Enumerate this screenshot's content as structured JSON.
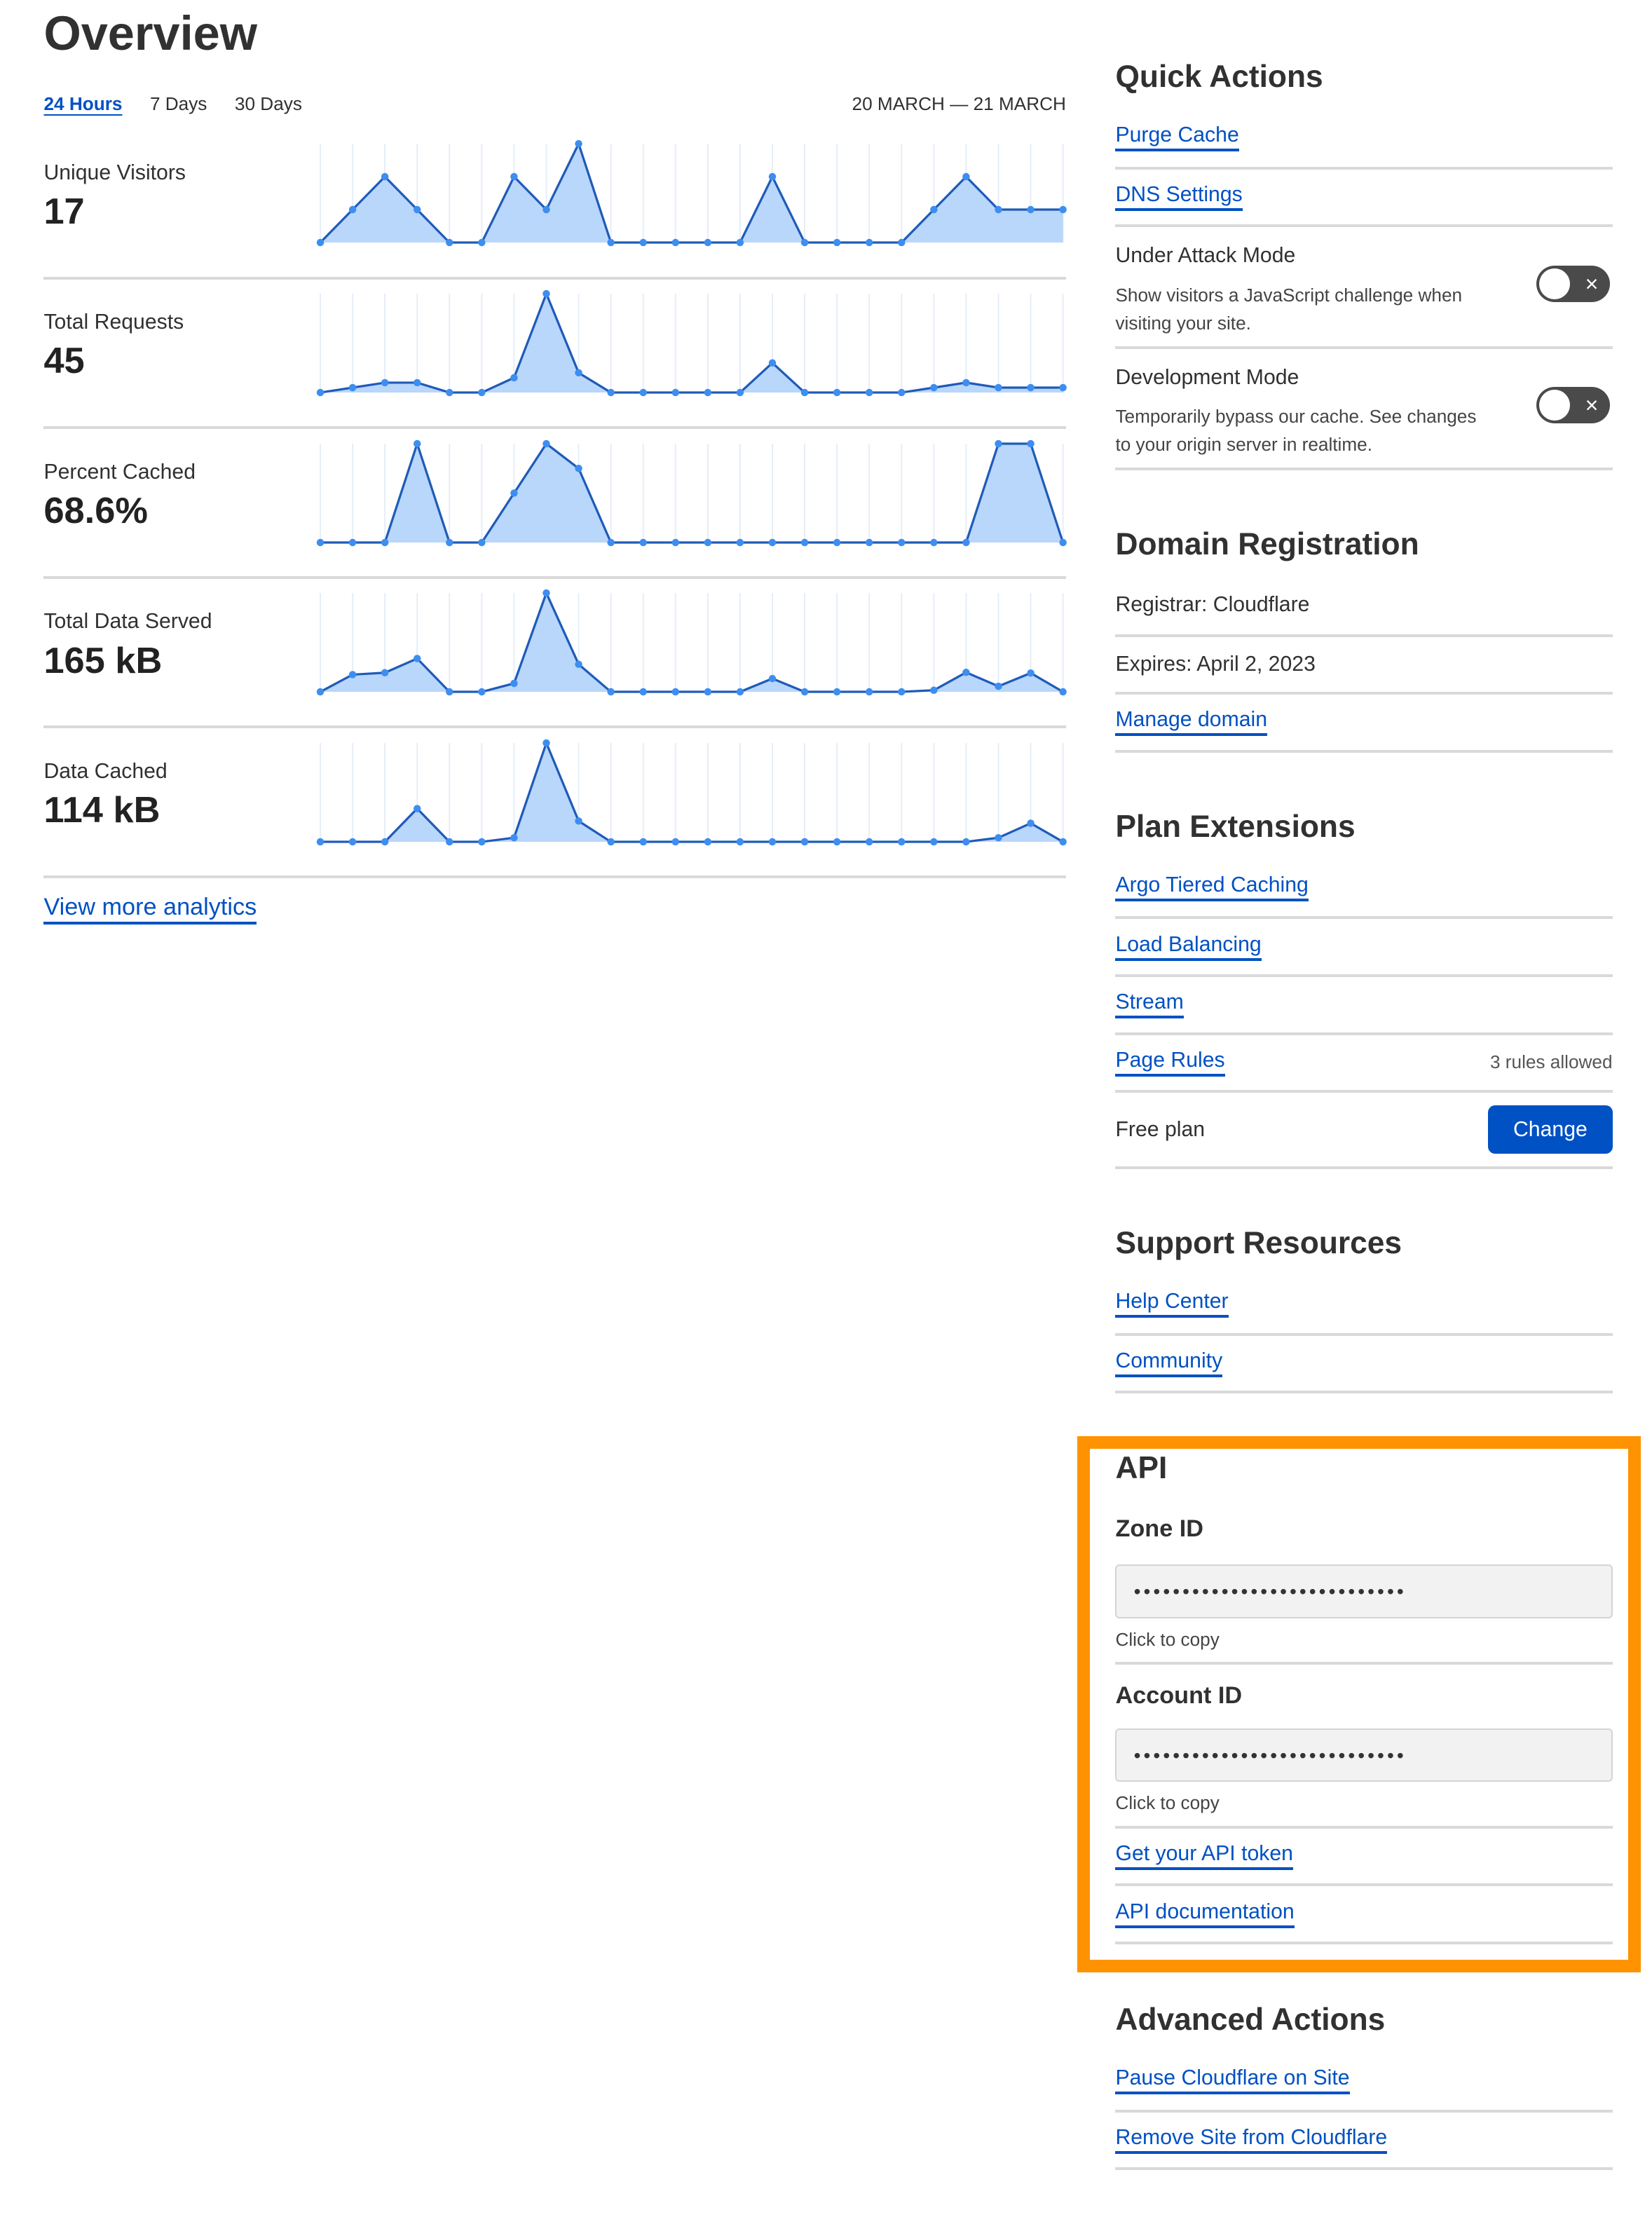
{
  "header": {
    "title": "Overview",
    "tabs": [
      "24 Hours",
      "7 Days",
      "30 Days"
    ],
    "active_tab": "24 Hours",
    "date_range": "20 MARCH — 21 MARCH"
  },
  "chart_data": [
    {
      "type": "area",
      "label": "Unique Visitors",
      "value": "17",
      "values": [
        0,
        1,
        2,
        1,
        0,
        0,
        2,
        1,
        3,
        0,
        0,
        0,
        0,
        0,
        2,
        0,
        0,
        0,
        0,
        1,
        2,
        1,
        1,
        1
      ]
    },
    {
      "type": "area",
      "label": "Total Requests",
      "value": "45",
      "values": [
        0,
        1,
        2,
        2,
        0,
        0,
        3,
        20,
        4,
        0,
        0,
        0,
        0,
        0,
        6,
        0,
        0,
        0,
        0,
        1,
        2,
        1,
        1,
        1
      ]
    },
    {
      "type": "area",
      "label": "Percent Cached",
      "value": "68.6%",
      "values": [
        0,
        0,
        0,
        100,
        0,
        0,
        50,
        100,
        75,
        0,
        0,
        0,
        0,
        0,
        0,
        0,
        0,
        0,
        0,
        0,
        0,
        100,
        100,
        0
      ]
    },
    {
      "type": "area",
      "label": "Total Data Served",
      "value": "165 kB",
      "values": [
        0,
        10.8,
        12,
        20.9,
        0,
        0,
        5.3,
        62,
        17.3,
        0,
        0,
        0,
        0,
        0,
        8.3,
        0,
        0,
        0,
        0,
        1,
        12.2,
        3.5,
        11.8,
        0
      ]
    },
    {
      "type": "area",
      "label": "Data Cached",
      "value": "114 kB",
      "values": [
        0,
        0,
        0,
        21.1,
        0,
        0,
        2.6,
        62.7,
        13.2,
        0,
        0,
        0,
        0,
        0,
        0,
        0,
        0,
        0,
        0,
        0,
        0,
        2.6,
        11.8,
        0
      ]
    }
  ],
  "view_more": "View more analytics",
  "colors": {
    "accent": "#0051c3",
    "line": "#1e5bb8",
    "point": "#3d8ef0",
    "fill": "#b9d6fb",
    "highlight": "#ff9200"
  },
  "quick_actions": {
    "title": "Quick Actions",
    "links": [
      "Purge Cache",
      "DNS Settings"
    ],
    "toggles": [
      {
        "title": "Under Attack Mode",
        "desc": "Show visitors a JavaScript challenge when visiting your site.",
        "on": false,
        "icon": "×"
      },
      {
        "title": "Development Mode",
        "desc": "Temporarily bypass our cache. See changes to your origin server in realtime.",
        "on": false,
        "icon": "×"
      }
    ]
  },
  "domain": {
    "title": "Domain Registration",
    "registrar": "Registrar: Cloudflare",
    "expires": "Expires: April 2, 2023",
    "manage": "Manage domain"
  },
  "plan": {
    "title": "Plan Extensions",
    "links": [
      "Argo Tiered Caching",
      "Load Balancing",
      "Stream",
      "Page Rules"
    ],
    "page_rules_meta": "3 rules allowed",
    "plan_name": "Free plan",
    "change": "Change"
  },
  "support": {
    "title": "Support Resources",
    "links": [
      "Help Center",
      "Community"
    ]
  },
  "api": {
    "title": "API",
    "zone_label": "Zone ID",
    "zone_value": "••••••••••••••••••••••••••••",
    "account_label": "Account ID",
    "account_value": "••••••••••••••••••••••••••••",
    "copy_hint": "Click to copy",
    "links": [
      "Get your API token",
      "API documentation"
    ]
  },
  "advanced": {
    "title": "Advanced Actions",
    "links": [
      "Pause Cloudflare on Site",
      "Remove Site from Cloudflare"
    ]
  }
}
